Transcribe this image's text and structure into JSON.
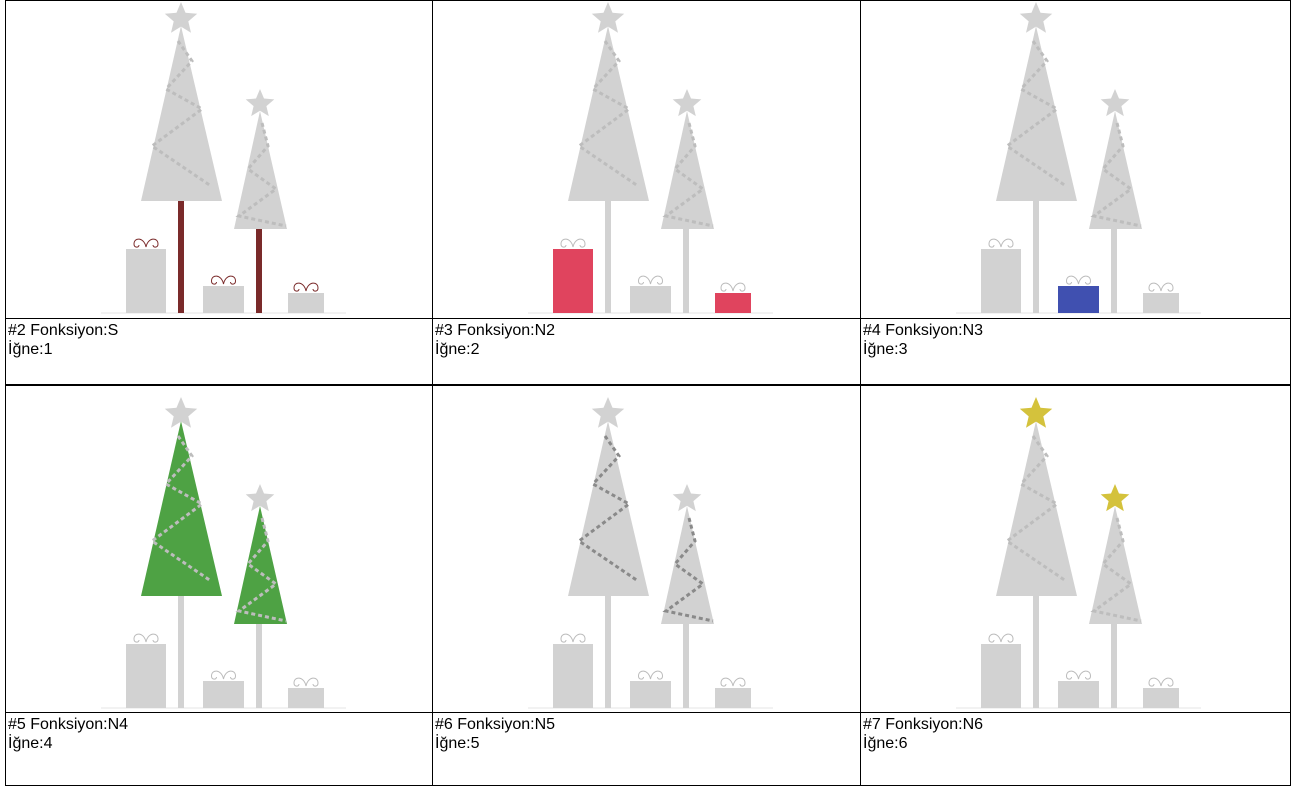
{
  "cells": [
    {
      "title": "#2 Fonksiyon:S",
      "needle": "İğne:1"
    },
    {
      "title": "#3 Fonksiyon:N2",
      "needle": "İğne:2"
    },
    {
      "title": "#4 Fonksiyon:N3",
      "needle": "İğne:3"
    },
    {
      "title": "#5 Fonksiyon:N4",
      "needle": "İğne:4"
    },
    {
      "title": "#6 Fonksiyon:N5",
      "needle": "İğne:5"
    },
    {
      "title": "#7 Fonksiyon:N6",
      "needle": "İğne:6"
    }
  ]
}
